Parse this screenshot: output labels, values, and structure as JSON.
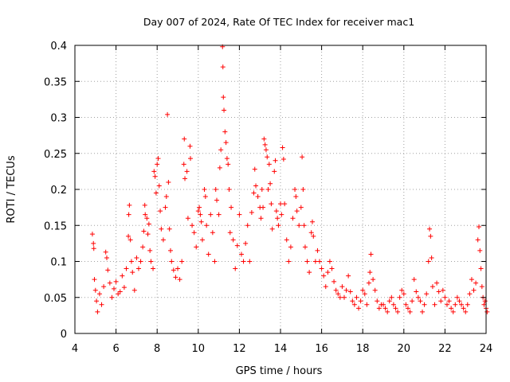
{
  "chart_data": {
    "type": "scatter",
    "title": "Day 007 of 2024, Rate Of TEC Index for receiver mac1",
    "xlabel": "GPS time / hours",
    "ylabel": "ROTI / TECUs",
    "xlim": [
      4,
      24
    ],
    "ylim": [
      0,
      0.4
    ],
    "xticks": [
      4,
      6,
      8,
      10,
      12,
      14,
      16,
      18,
      20,
      22,
      24
    ],
    "xtick_labels": [
      "4",
      "6",
      "8",
      "10",
      "12",
      "14",
      "16",
      "18",
      "20",
      "22",
      "24"
    ],
    "yticks": [
      0,
      0.05,
      0.1,
      0.15,
      0.2,
      0.25,
      0.3,
      0.35,
      0.4
    ],
    "ytick_labels": [
      "0",
      "0.05",
      "0.1",
      "0.15",
      "0.2",
      "0.25",
      "0.3",
      "0.35",
      "0.4"
    ],
    "grid": true,
    "marker": "+",
    "color": "#ff0000",
    "series": [
      {
        "name": "ROTI",
        "points": [
          [
            4.85,
            0.138
          ],
          [
            4.9,
            0.125
          ],
          [
            4.92,
            0.118
          ],
          [
            4.95,
            0.075
          ],
          [
            5.0,
            0.06
          ],
          [
            5.05,
            0.045
          ],
          [
            5.1,
            0.03
          ],
          [
            5.2,
            0.055
          ],
          [
            5.3,
            0.04
          ],
          [
            5.4,
            0.065
          ],
          [
            5.5,
            0.113
          ],
          [
            5.55,
            0.105
          ],
          [
            5.6,
            0.088
          ],
          [
            5.7,
            0.07
          ],
          [
            5.8,
            0.05
          ],
          [
            5.9,
            0.062
          ],
          [
            6.0,
            0.072
          ],
          [
            6.1,
            0.055
          ],
          [
            6.2,
            0.058
          ],
          [
            6.3,
            0.08
          ],
          [
            6.4,
            0.064
          ],
          [
            6.5,
            0.09
          ],
          [
            6.6,
            0.135
          ],
          [
            6.62,
            0.165
          ],
          [
            6.65,
            0.178
          ],
          [
            6.7,
            0.13
          ],
          [
            6.75,
            0.1
          ],
          [
            6.8,
            0.085
          ],
          [
            6.9,
            0.06
          ],
          [
            7.0,
            0.105
          ],
          [
            7.1,
            0.09
          ],
          [
            7.2,
            0.1
          ],
          [
            7.3,
            0.12
          ],
          [
            7.35,
            0.142
          ],
          [
            7.4,
            0.178
          ],
          [
            7.42,
            0.165
          ],
          [
            7.5,
            0.16
          ],
          [
            7.55,
            0.138
          ],
          [
            7.6,
            0.152
          ],
          [
            7.65,
            0.115
          ],
          [
            7.7,
            0.1
          ],
          [
            7.8,
            0.09
          ],
          [
            7.85,
            0.225
          ],
          [
            7.9,
            0.218
          ],
          [
            7.95,
            0.195
          ],
          [
            8.0,
            0.235
          ],
          [
            8.05,
            0.243
          ],
          [
            8.1,
            0.205
          ],
          [
            8.15,
            0.17
          ],
          [
            8.2,
            0.145
          ],
          [
            8.3,
            0.13
          ],
          [
            8.4,
            0.175
          ],
          [
            8.45,
            0.19
          ],
          [
            8.5,
            0.304
          ],
          [
            8.55,
            0.21
          ],
          [
            8.6,
            0.145
          ],
          [
            8.65,
            0.115
          ],
          [
            8.7,
            0.1
          ],
          [
            8.8,
            0.088
          ],
          [
            8.9,
            0.078
          ],
          [
            9.0,
            0.09
          ],
          [
            9.1,
            0.075
          ],
          [
            9.2,
            0.1
          ],
          [
            9.3,
            0.235
          ],
          [
            9.32,
            0.27
          ],
          [
            9.35,
            0.215
          ],
          [
            9.45,
            0.225
          ],
          [
            9.5,
            0.16
          ],
          [
            9.6,
            0.26
          ],
          [
            9.62,
            0.243
          ],
          [
            9.7,
            0.15
          ],
          [
            9.8,
            0.14
          ],
          [
            9.9,
            0.12
          ],
          [
            10.0,
            0.17
          ],
          [
            10.05,
            0.175
          ],
          [
            10.1,
            0.165
          ],
          [
            10.15,
            0.155
          ],
          [
            10.2,
            0.13
          ],
          [
            10.3,
            0.2
          ],
          [
            10.35,
            0.19
          ],
          [
            10.4,
            0.15
          ],
          [
            10.5,
            0.11
          ],
          [
            10.6,
            0.165
          ],
          [
            10.7,
            0.14
          ],
          [
            10.8,
            0.1
          ],
          [
            10.85,
            0.2
          ],
          [
            10.9,
            0.185
          ],
          [
            11.0,
            0.165
          ],
          [
            11.05,
            0.23
          ],
          [
            11.1,
            0.255
          ],
          [
            11.18,
            0.398
          ],
          [
            11.2,
            0.37
          ],
          [
            11.22,
            0.328
          ],
          [
            11.25,
            0.31
          ],
          [
            11.3,
            0.28
          ],
          [
            11.35,
            0.265
          ],
          [
            11.4,
            0.243
          ],
          [
            11.45,
            0.235
          ],
          [
            11.5,
            0.2
          ],
          [
            11.55,
            0.14
          ],
          [
            11.6,
            0.175
          ],
          [
            11.7,
            0.13
          ],
          [
            11.8,
            0.09
          ],
          [
            11.9,
            0.122
          ],
          [
            12.0,
            0.165
          ],
          [
            12.1,
            0.11
          ],
          [
            12.2,
            0.1
          ],
          [
            12.3,
            0.125
          ],
          [
            12.4,
            0.15
          ],
          [
            12.5,
            0.1
          ],
          [
            12.6,
            0.168
          ],
          [
            12.7,
            0.195
          ],
          [
            12.75,
            0.228
          ],
          [
            12.8,
            0.205
          ],
          [
            12.9,
            0.19
          ],
          [
            13.0,
            0.175
          ],
          [
            13.05,
            0.16
          ],
          [
            13.1,
            0.2
          ],
          [
            13.15,
            0.175
          ],
          [
            13.2,
            0.27
          ],
          [
            13.25,
            0.262
          ],
          [
            13.3,
            0.255
          ],
          [
            13.35,
            0.245
          ],
          [
            13.4,
            0.2
          ],
          [
            13.45,
            0.235
          ],
          [
            13.5,
            0.208
          ],
          [
            13.55,
            0.18
          ],
          [
            13.6,
            0.145
          ],
          [
            13.7,
            0.225
          ],
          [
            13.75,
            0.24
          ],
          [
            13.8,
            0.17
          ],
          [
            13.85,
            0.16
          ],
          [
            13.9,
            0.15
          ],
          [
            14.0,
            0.18
          ],
          [
            14.05,
            0.165
          ],
          [
            14.1,
            0.258
          ],
          [
            14.15,
            0.242
          ],
          [
            14.2,
            0.18
          ],
          [
            14.3,
            0.13
          ],
          [
            14.4,
            0.1
          ],
          [
            14.5,
            0.12
          ],
          [
            14.6,
            0.16
          ],
          [
            14.7,
            0.2
          ],
          [
            14.75,
            0.19
          ],
          [
            14.8,
            0.17
          ],
          [
            14.9,
            0.15
          ],
          [
            15.0,
            0.175
          ],
          [
            15.05,
            0.245
          ],
          [
            15.1,
            0.2
          ],
          [
            15.15,
            0.15
          ],
          [
            15.2,
            0.12
          ],
          [
            15.3,
            0.1
          ],
          [
            15.4,
            0.085
          ],
          [
            15.5,
            0.14
          ],
          [
            15.55,
            0.155
          ],
          [
            15.6,
            0.135
          ],
          [
            15.7,
            0.1
          ],
          [
            15.8,
            0.115
          ],
          [
            15.9,
            0.1
          ],
          [
            16.0,
            0.09
          ],
          [
            16.1,
            0.08
          ],
          [
            16.2,
            0.065
          ],
          [
            16.3,
            0.085
          ],
          [
            16.4,
            0.1
          ],
          [
            16.5,
            0.09
          ],
          [
            16.6,
            0.072
          ],
          [
            16.7,
            0.06
          ],
          [
            16.8,
            0.055
          ],
          [
            16.9,
            0.05
          ],
          [
            17.0,
            0.065
          ],
          [
            17.1,
            0.05
          ],
          [
            17.2,
            0.06
          ],
          [
            17.3,
            0.08
          ],
          [
            17.4,
            0.058
          ],
          [
            17.5,
            0.045
          ],
          [
            17.6,
            0.04
          ],
          [
            17.7,
            0.05
          ],
          [
            17.8,
            0.035
          ],
          [
            17.9,
            0.045
          ],
          [
            18.0,
            0.06
          ],
          [
            18.1,
            0.055
          ],
          [
            18.2,
            0.04
          ],
          [
            18.3,
            0.07
          ],
          [
            18.35,
            0.085
          ],
          [
            18.4,
            0.11
          ],
          [
            18.5,
            0.075
          ],
          [
            18.6,
            0.06
          ],
          [
            18.7,
            0.045
          ],
          [
            18.8,
            0.035
          ],
          [
            18.9,
            0.04
          ],
          [
            19.0,
            0.04
          ],
          [
            19.1,
            0.035
          ],
          [
            19.2,
            0.03
          ],
          [
            19.3,
            0.045
          ],
          [
            19.4,
            0.05
          ],
          [
            19.5,
            0.04
          ],
          [
            19.6,
            0.035
          ],
          [
            19.7,
            0.03
          ],
          [
            19.8,
            0.05
          ],
          [
            19.9,
            0.06
          ],
          [
            20.0,
            0.055
          ],
          [
            20.1,
            0.04
          ],
          [
            20.2,
            0.035
          ],
          [
            20.3,
            0.03
          ],
          [
            20.4,
            0.045
          ],
          [
            20.5,
            0.075
          ],
          [
            20.6,
            0.058
          ],
          [
            20.7,
            0.05
          ],
          [
            20.8,
            0.045
          ],
          [
            20.9,
            0.03
          ],
          [
            21.0,
            0.04
          ],
          [
            21.1,
            0.055
          ],
          [
            21.2,
            0.1
          ],
          [
            21.25,
            0.145
          ],
          [
            21.3,
            0.135
          ],
          [
            21.35,
            0.105
          ],
          [
            21.4,
            0.065
          ],
          [
            21.5,
            0.04
          ],
          [
            21.6,
            0.07
          ],
          [
            21.7,
            0.058
          ],
          [
            21.8,
            0.045
          ],
          [
            21.9,
            0.06
          ],
          [
            22.0,
            0.05
          ],
          [
            22.1,
            0.04
          ],
          [
            22.2,
            0.045
          ],
          [
            22.3,
            0.035
          ],
          [
            22.4,
            0.03
          ],
          [
            22.5,
            0.04
          ],
          [
            22.6,
            0.05
          ],
          [
            22.7,
            0.045
          ],
          [
            22.8,
            0.04
          ],
          [
            22.9,
            0.035
          ],
          [
            23.0,
            0.03
          ],
          [
            23.1,
            0.04
          ],
          [
            23.2,
            0.055
          ],
          [
            23.3,
            0.075
          ],
          [
            23.4,
            0.06
          ],
          [
            23.5,
            0.07
          ],
          [
            23.6,
            0.13
          ],
          [
            23.65,
            0.148
          ],
          [
            23.7,
            0.115
          ],
          [
            23.75,
            0.09
          ],
          [
            23.8,
            0.065
          ],
          [
            23.85,
            0.05
          ],
          [
            23.9,
            0.04
          ],
          [
            23.95,
            0.045
          ],
          [
            24.0,
            0.035
          ],
          [
            24.05,
            0.03
          ]
        ]
      }
    ]
  }
}
